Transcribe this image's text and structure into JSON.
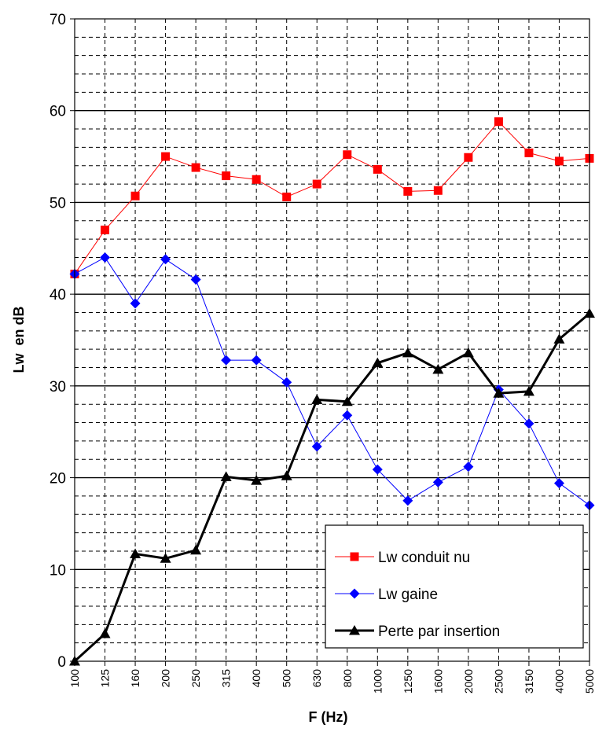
{
  "chart_data": {
    "type": "line",
    "title": "",
    "xlabel": "F (Hz)",
    "ylabel": "Lw  en dB",
    "ylim": [
      0,
      70
    ],
    "y_ticks": [
      0,
      10,
      20,
      30,
      40,
      50,
      60,
      70
    ],
    "y_minor_step": 2,
    "grid": "on",
    "legend_position": "bottom-right",
    "categories": [
      "100",
      "125",
      "160",
      "200",
      "250",
      "315",
      "400",
      "500",
      "630",
      "800",
      "1000",
      "1250",
      "1600",
      "2000",
      "2500",
      "3150",
      "4000",
      "5000"
    ],
    "series": [
      {
        "name": "Lw conduit nu",
        "color": "#ff0000",
        "marker": "square",
        "line_width": 1,
        "values": [
          42.2,
          47.0,
          50.7,
          55.0,
          53.8,
          52.9,
          52.5,
          50.6,
          52.0,
          55.2,
          53.6,
          51.2,
          51.3,
          54.9,
          58.8,
          55.4,
          54.5,
          54.8
        ]
      },
      {
        "name": "Lw gaine",
        "color": "#0000ff",
        "marker": "diamond",
        "line_width": 1,
        "values": [
          42.2,
          44.0,
          39.0,
          43.8,
          41.6,
          32.8,
          32.8,
          30.4,
          23.4,
          26.8,
          20.9,
          17.5,
          19.5,
          21.2,
          29.6,
          25.9,
          19.4,
          17.0
        ]
      },
      {
        "name": "Perte par insertion",
        "color": "#000000",
        "marker": "triangle",
        "line_width": 3,
        "values": [
          0.0,
          3.0,
          11.7,
          11.2,
          12.1,
          20.1,
          19.7,
          20.2,
          28.5,
          28.3,
          32.5,
          33.6,
          31.8,
          33.6,
          29.2,
          29.4,
          35.1,
          37.9
        ]
      }
    ]
  }
}
